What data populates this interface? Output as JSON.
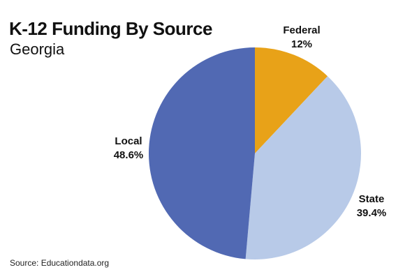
{
  "title": "K-12 Funding By Source",
  "subtitle": "Georgia",
  "source": "Source: Educationdata.org",
  "chart_data": {
    "type": "pie",
    "title": "K-12 Funding By Source",
    "subtitle": "Georgia",
    "slices": [
      {
        "label": "Federal",
        "value": 12,
        "value_label": "12%",
        "color": "#E8A218"
      },
      {
        "label": "State",
        "value": 39.4,
        "value_label": "39.4%",
        "color": "#B8CAE8"
      },
      {
        "label": "Local",
        "value": 48.6,
        "value_label": "48.6%",
        "color": "#5169B3"
      }
    ],
    "start_angle": "12 o'clock",
    "direction": "clockwise",
    "legend": "none (direct labels)"
  }
}
